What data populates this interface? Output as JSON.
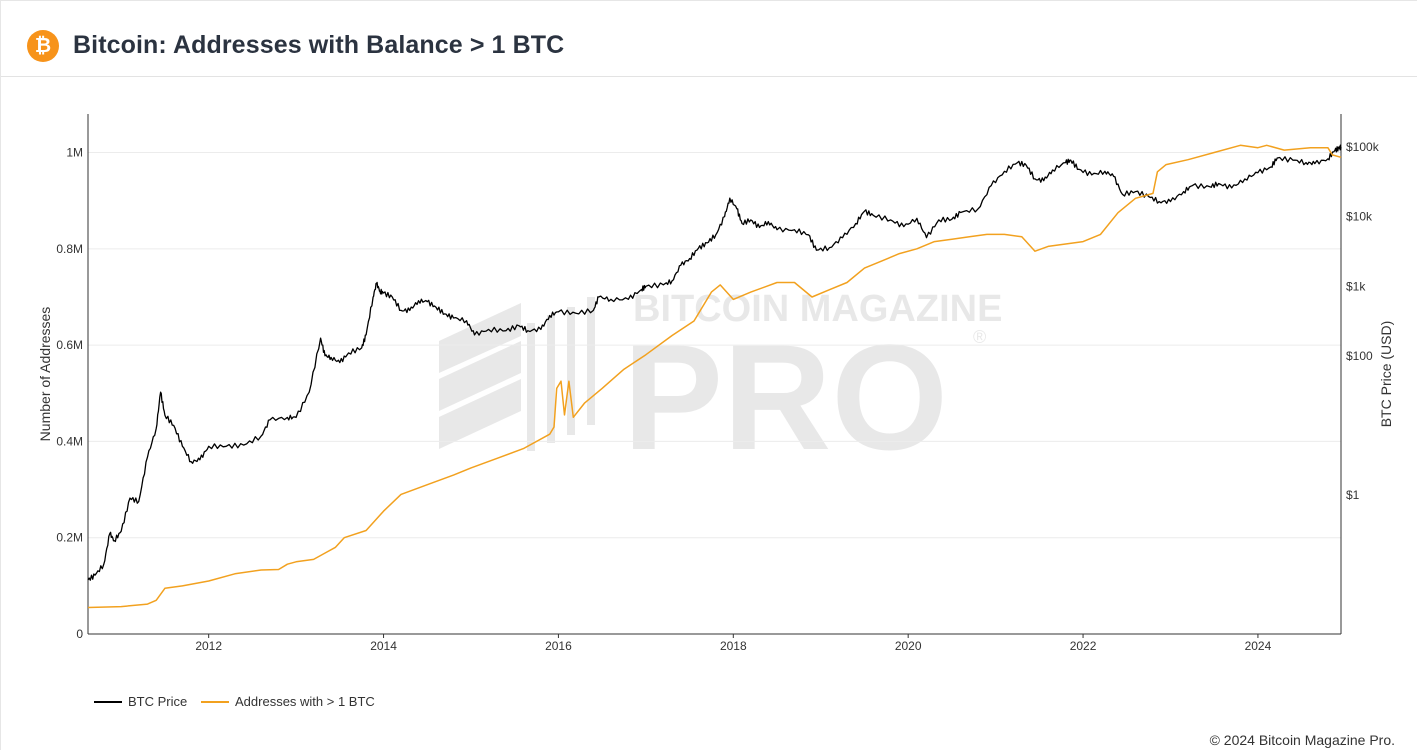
{
  "header": {
    "title": "Bitcoin: Addresses with Balance > 1 BTC",
    "logo_glyph": "₿",
    "logo_icon": "bitcoin-logo-icon"
  },
  "watermark": {
    "line1": "BITCOIN MAGAZINE",
    "line2": "PRO",
    "registered": "®"
  },
  "footer": {
    "copyright": "© 2024 Bitcoin Magazine Pro."
  },
  "colors": {
    "btc_price": "#000000",
    "addresses": "#f2a11f",
    "accent": "#f7931a"
  },
  "chart_data": {
    "type": "line",
    "title": "Bitcoin: Addresses with Balance > 1 BTC",
    "x_range": [
      2010.62,
      2024.95
    ],
    "x_ticks": [
      2012,
      2014,
      2016,
      2018,
      2020,
      2022,
      2024
    ],
    "y_left": {
      "label": "Number of Addresses",
      "range": [
        0,
        1080000
      ],
      "ticks": [
        {
          "v": 0,
          "label": "0"
        },
        {
          "v": 200000,
          "label": "0.2M"
        },
        {
          "v": 400000,
          "label": "0.4M"
        },
        {
          "v": 600000,
          "label": "0.6M"
        },
        {
          "v": 800000,
          "label": "0.8M"
        },
        {
          "v": 1000000,
          "label": "1M"
        }
      ]
    },
    "y_right": {
      "label": "BTC Price (USD)",
      "scale": "log",
      "range": [
        0.01,
        300000
      ],
      "ticks": [
        {
          "v": 1,
          "label": "$1"
        },
        {
          "v": 100,
          "label": "$100"
        },
        {
          "v": 1000,
          "label": "$1k"
        },
        {
          "v": 10000,
          "label": "$10k"
        },
        {
          "v": 100000,
          "label": "$100k"
        }
      ]
    },
    "legend_position": "bottom-left",
    "series": [
      {
        "name": "BTC Price",
        "axis": "right",
        "points": [
          [
            2010.62,
            0.06
          ],
          [
            2010.7,
            0.07
          ],
          [
            2010.8,
            0.1
          ],
          [
            2010.87,
            0.28
          ],
          [
            2010.92,
            0.22
          ],
          [
            2011.0,
            0.3
          ],
          [
            2011.1,
            0.9
          ],
          [
            2011.2,
            0.8
          ],
          [
            2011.3,
            3.5
          ],
          [
            2011.4,
            9
          ],
          [
            2011.45,
            30
          ],
          [
            2011.5,
            14
          ],
          [
            2011.6,
            10
          ],
          [
            2011.7,
            5
          ],
          [
            2011.8,
            3
          ],
          [
            2011.9,
            3.2
          ],
          [
            2012.0,
            5
          ],
          [
            2012.2,
            5
          ],
          [
            2012.4,
            5.2
          ],
          [
            2012.6,
            7
          ],
          [
            2012.7,
            12
          ],
          [
            2012.9,
            13
          ],
          [
            2013.0,
            13
          ],
          [
            2013.15,
            30
          ],
          [
            2013.28,
            180
          ],
          [
            2013.33,
            100
          ],
          [
            2013.4,
            95
          ],
          [
            2013.5,
            80
          ],
          [
            2013.6,
            110
          ],
          [
            2013.75,
            130
          ],
          [
            2013.8,
            200
          ],
          [
            2013.88,
            700
          ],
          [
            2013.92,
            1100
          ],
          [
            2013.96,
            850
          ],
          [
            2014.0,
            800
          ],
          [
            2014.1,
            700
          ],
          [
            2014.2,
            450
          ],
          [
            2014.3,
            450
          ],
          [
            2014.4,
            620
          ],
          [
            2014.5,
            600
          ],
          [
            2014.6,
            500
          ],
          [
            2014.7,
            400
          ],
          [
            2014.8,
            350
          ],
          [
            2014.95,
            320
          ],
          [
            2015.04,
            200
          ],
          [
            2015.2,
            240
          ],
          [
            2015.4,
            230
          ],
          [
            2015.55,
            270
          ],
          [
            2015.65,
            230
          ],
          [
            2015.8,
            240
          ],
          [
            2015.9,
            380
          ],
          [
            2016.0,
            430
          ],
          [
            2016.2,
            410
          ],
          [
            2016.4,
            450
          ],
          [
            2016.46,
            700
          ],
          [
            2016.6,
            650
          ],
          [
            2016.8,
            650
          ],
          [
            2016.95,
            900
          ],
          [
            2017.0,
            1000
          ],
          [
            2017.2,
            1050
          ],
          [
            2017.3,
            1200
          ],
          [
            2017.4,
            2000
          ],
          [
            2017.5,
            2500
          ],
          [
            2017.6,
            3500
          ],
          [
            2017.7,
            4200
          ],
          [
            2017.8,
            5500
          ],
          [
            2017.9,
            10000
          ],
          [
            2017.96,
            18500
          ],
          [
            2018.04,
            13000
          ],
          [
            2018.1,
            8000
          ],
          [
            2018.2,
            9000
          ],
          [
            2018.3,
            7000
          ],
          [
            2018.4,
            8500
          ],
          [
            2018.5,
            6500
          ],
          [
            2018.7,
            6500
          ],
          [
            2018.86,
            5500
          ],
          [
            2018.95,
            3300
          ],
          [
            2019.1,
            3600
          ],
          [
            2019.25,
            5000
          ],
          [
            2019.4,
            8000
          ],
          [
            2019.5,
            12000
          ],
          [
            2019.6,
            10500
          ],
          [
            2019.8,
            9000
          ],
          [
            2019.95,
            7200
          ],
          [
            2020.1,
            9500
          ],
          [
            2020.21,
            5000
          ],
          [
            2020.35,
            9000
          ],
          [
            2020.5,
            9200
          ],
          [
            2020.6,
            11500
          ],
          [
            2020.8,
            13000
          ],
          [
            2020.95,
            28000
          ],
          [
            2021.1,
            45000
          ],
          [
            2021.25,
            60000
          ],
          [
            2021.35,
            55000
          ],
          [
            2021.45,
            35000
          ],
          [
            2021.55,
            33000
          ],
          [
            2021.65,
            47000
          ],
          [
            2021.8,
            60000
          ],
          [
            2021.86,
            65000
          ],
          [
            2021.95,
            48000
          ],
          [
            2022.1,
            40000
          ],
          [
            2022.25,
            45000
          ],
          [
            2022.35,
            38000
          ],
          [
            2022.45,
            21000
          ],
          [
            2022.6,
            23000
          ],
          [
            2022.75,
            19500
          ],
          [
            2022.87,
            16500
          ],
          [
            2023.0,
            16500
          ],
          [
            2023.15,
            23000
          ],
          [
            2023.25,
            28000
          ],
          [
            2023.45,
            27000
          ],
          [
            2023.55,
            30000
          ],
          [
            2023.7,
            26000
          ],
          [
            2023.85,
            35000
          ],
          [
            2024.0,
            43000
          ],
          [
            2024.15,
            52000
          ],
          [
            2024.22,
            70000
          ],
          [
            2024.4,
            65000
          ],
          [
            2024.55,
            60000
          ],
          [
            2024.65,
            58000
          ],
          [
            2024.8,
            68000
          ],
          [
            2024.88,
            90000
          ],
          [
            2024.93,
            97000
          ],
          [
            2024.95,
            100000
          ]
        ]
      },
      {
        "name": "Addresses with > 1 BTC",
        "axis": "left",
        "points": [
          [
            2010.62,
            55000
          ],
          [
            2011.0,
            57000
          ],
          [
            2011.3,
            62000
          ],
          [
            2011.4,
            70000
          ],
          [
            2011.5,
            95000
          ],
          [
            2011.7,
            100000
          ],
          [
            2012.0,
            110000
          ],
          [
            2012.3,
            125000
          ],
          [
            2012.6,
            133000
          ],
          [
            2012.8,
            134000
          ],
          [
            2012.9,
            145000
          ],
          [
            2013.0,
            150000
          ],
          [
            2013.2,
            155000
          ],
          [
            2013.35,
            170000
          ],
          [
            2013.45,
            180000
          ],
          [
            2013.55,
            200000
          ],
          [
            2013.8,
            215000
          ],
          [
            2014.0,
            255000
          ],
          [
            2014.2,
            290000
          ],
          [
            2014.5,
            310000
          ],
          [
            2014.8,
            330000
          ],
          [
            2015.0,
            345000
          ],
          [
            2015.3,
            365000
          ],
          [
            2015.6,
            385000
          ],
          [
            2015.9,
            415000
          ],
          [
            2015.95,
            430000
          ],
          [
            2015.98,
            510000
          ],
          [
            2016.03,
            525000
          ],
          [
            2016.07,
            455000
          ],
          [
            2016.12,
            525000
          ],
          [
            2016.17,
            450000
          ],
          [
            2016.3,
            480000
          ],
          [
            2016.5,
            510000
          ],
          [
            2016.75,
            550000
          ],
          [
            2017.0,
            580000
          ],
          [
            2017.3,
            620000
          ],
          [
            2017.55,
            650000
          ],
          [
            2017.75,
            710000
          ],
          [
            2017.85,
            725000
          ],
          [
            2018.0,
            695000
          ],
          [
            2018.2,
            710000
          ],
          [
            2018.5,
            730000
          ],
          [
            2018.7,
            730000
          ],
          [
            2018.9,
            700000
          ],
          [
            2019.1,
            715000
          ],
          [
            2019.3,
            730000
          ],
          [
            2019.5,
            760000
          ],
          [
            2019.7,
            775000
          ],
          [
            2019.9,
            790000
          ],
          [
            2020.1,
            800000
          ],
          [
            2020.3,
            815000
          ],
          [
            2020.5,
            820000
          ],
          [
            2020.7,
            825000
          ],
          [
            2020.9,
            830000
          ],
          [
            2021.1,
            830000
          ],
          [
            2021.3,
            825000
          ],
          [
            2021.45,
            795000
          ],
          [
            2021.6,
            805000
          ],
          [
            2021.8,
            810000
          ],
          [
            2022.0,
            815000
          ],
          [
            2022.2,
            830000
          ],
          [
            2022.4,
            875000
          ],
          [
            2022.6,
            905000
          ],
          [
            2022.8,
            915000
          ],
          [
            2022.85,
            960000
          ],
          [
            2022.95,
            975000
          ],
          [
            2023.2,
            985000
          ],
          [
            2023.5,
            1000000
          ],
          [
            2023.8,
            1015000
          ],
          [
            2024.0,
            1010000
          ],
          [
            2024.1,
            1015000
          ],
          [
            2024.3,
            1005000
          ],
          [
            2024.6,
            1010000
          ],
          [
            2024.8,
            1010000
          ],
          [
            2024.85,
            995000
          ],
          [
            2024.95,
            990000
          ]
        ]
      }
    ]
  }
}
